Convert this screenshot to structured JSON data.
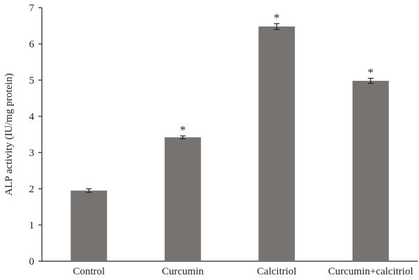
{
  "chart_data": {
    "type": "bar",
    "title": "",
    "xlabel": "",
    "ylabel": "ALP activity (IU/mg protein)",
    "ylim": [
      0,
      7
    ],
    "yticks": [
      0,
      1,
      2,
      3,
      4,
      5,
      6,
      7
    ],
    "grid": false,
    "categories": [
      "Control",
      "Curcumin",
      "Calcitriol",
      "Curcumin+calcitriol"
    ],
    "values": [
      1.95,
      3.42,
      6.48,
      4.98
    ],
    "errors": [
      0.05,
      0.04,
      0.08,
      0.07
    ],
    "significance": [
      "",
      "*",
      "*",
      "*"
    ],
    "bar_color": "#777371",
    "error_color": "#231f20"
  }
}
